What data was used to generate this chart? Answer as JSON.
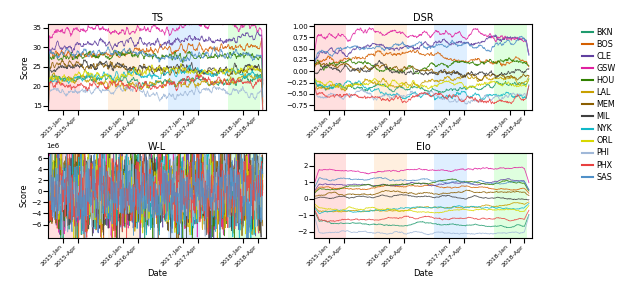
{
  "teams": [
    "BKN",
    "BOS",
    "CLE",
    "GSW",
    "HOU",
    "LAL",
    "MEM",
    "MIL",
    "NYK",
    "ORL",
    "PHI",
    "PHX",
    "SAS"
  ],
  "colors": {
    "BKN": "#1f9b6e",
    "BOS": "#d45f00",
    "CLE": "#6040a0",
    "GSW": "#e020a0",
    "HOU": "#308000",
    "LAL": "#c8a000",
    "MEM": "#8b5e00",
    "MIL": "#404040",
    "NYK": "#10b8c8",
    "ORL": "#d8d800",
    "PHI": "#a0b8d8",
    "PHX": "#e84040",
    "SAS": "#5090c8"
  },
  "subplot_titles": [
    "TS",
    "DSR",
    "W-L",
    "Elo"
  ],
  "ylabels": [
    "Score",
    "",
    "Score",
    ""
  ],
  "xlabels": [
    "",
    "",
    "Date",
    "Date"
  ],
  "season_colors": [
    "#ffb0b0",
    "#ffd8b0",
    "#b0d8ff",
    "#b0ffb0"
  ],
  "xtick_labels": [
    "2015-Jan",
    "2015-Apr",
    "2016-Jan",
    "2016-Apr",
    "2017-Jan",
    "2017-Apr",
    "2018-Jan",
    "2018-Apr"
  ],
  "ts_ylim": [
    14,
    36
  ],
  "dsr_ylim": [
    -0.85,
    1.05
  ],
  "wl_ylim": [
    -8500000.0,
    7000000.0
  ],
  "elo_ylim": [
    -2.4,
    2.8
  ],
  "ts_yticks": [
    15,
    20,
    25,
    30,
    35
  ],
  "dsr_yticks": [
    -0.75,
    -0.5,
    -0.25,
    0.0,
    0.25,
    0.5,
    0.75,
    1.0
  ],
  "wl_yticks": [
    -6,
    -4,
    -2,
    0,
    2,
    4,
    6
  ],
  "elo_yticks": [
    -2,
    -1,
    0,
    1,
    2
  ]
}
